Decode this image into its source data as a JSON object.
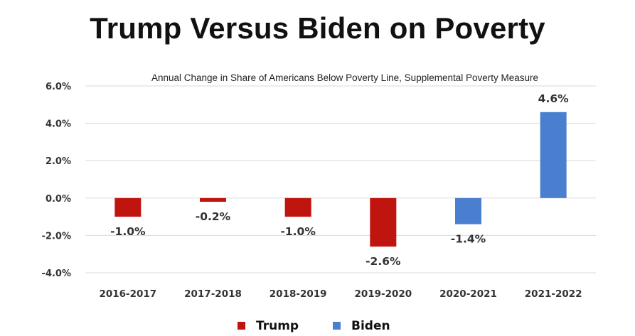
{
  "title": "Trump Versus Biden on Poverty",
  "chart_data": {
    "type": "bar",
    "subtitle": "Annual Change in Share of Americans Below Poverty Line, Supplemental Poverty Measure",
    "categories": [
      "2016-2017",
      "2017-2018",
      "2018-2019",
      "2019-2020",
      "2020-2021",
      "2021-2022"
    ],
    "values": [
      -1.0,
      -0.2,
      -1.0,
      -2.6,
      -1.4,
      4.6
    ],
    "data_labels": [
      "-1.0%",
      "-0.2%",
      "-1.0%",
      "-2.6%",
      "-1.4%",
      "4.6%"
    ],
    "bar_series": [
      "Trump",
      "Trump",
      "Trump",
      "Trump",
      "Biden",
      "Biden"
    ],
    "series": [
      {
        "name": "Trump",
        "color": "#c0140f"
      },
      {
        "name": "Biden",
        "color": "#4a7fd0"
      }
    ],
    "ylim": [
      -4.0,
      6.0
    ],
    "yticks": [
      6.0,
      4.0,
      2.0,
      0.0,
      -2.0,
      -4.0
    ],
    "ytick_labels": [
      "6.0%",
      "4.0%",
      "2.0%",
      "0.0%",
      "-2.0%",
      "-4.0%"
    ],
    "grid": true,
    "legend_position": "bottom-center"
  }
}
